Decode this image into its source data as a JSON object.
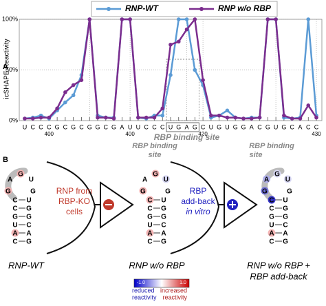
{
  "chart_data": {
    "type": "line",
    "panel_label": "A",
    "ylabel": "icSHAPE Reactivity",
    "categories": [
      "U",
      "C",
      "C",
      "C",
      "G",
      "C",
      "G",
      "C",
      "G",
      "G",
      "C",
      "G",
      "A",
      "U",
      "U",
      "C",
      "C",
      "C",
      "U",
      "G",
      "A",
      "G",
      "C",
      "U",
      "G",
      "U",
      "G",
      "G",
      "A",
      "C",
      "G",
      "U",
      "G",
      "C",
      "A",
      "C",
      "C"
    ],
    "position_labels": [
      "400",
      "400",
      "420",
      "430"
    ],
    "annotation": "RBP binding site",
    "series": [
      {
        "name": "RNP-WT",
        "color": "#5b9bd5",
        "values": [
          2,
          3,
          5,
          2,
          10,
          18,
          25,
          45,
          100,
          5,
          3,
          3,
          100,
          100,
          3,
          2,
          5,
          5,
          45,
          100,
          100,
          50,
          35,
          3,
          5,
          10,
          3,
          2,
          3,
          3,
          100,
          100,
          3,
          2,
          3,
          100,
          5
        ]
      },
      {
        "name": "RNP w/o RBP",
        "color": "#7b2d8e",
        "values": [
          2,
          2,
          3,
          3,
          12,
          28,
          35,
          40,
          100,
          3,
          3,
          2,
          100,
          100,
          3,
          3,
          3,
          12,
          75,
          78,
          90,
          100,
          40,
          5,
          5,
          3,
          3,
          2,
          2,
          3,
          100,
          100,
          5,
          2,
          2,
          15,
          3
        ]
      }
    ],
    "ylim": [
      0,
      100
    ],
    "yticks": [
      {
        "value": 0,
        "label": "0%"
      },
      {
        "value": 50,
        "label": "50%"
      },
      {
        "value": 100,
        "label": "100%"
      }
    ],
    "grid": true,
    "legend": "top"
  },
  "panel_b": {
    "panel_label": "B",
    "hairpin": {
      "left": [
        "C",
        "A",
        "U",
        "G",
        "C",
        "C"
      ],
      "loop": [
        "G",
        "A",
        "G",
        "U",
        "G"
      ],
      "right": [
        "U",
        "G",
        "G",
        "C",
        "A",
        "G"
      ]
    },
    "site_label": [
      "RBP binding",
      "site"
    ],
    "step1": [
      "RNP from",
      "RBP-KO",
      "cells"
    ],
    "step2": [
      "RBP",
      "add-back",
      "in vitro"
    ],
    "names": [
      "RNP-WT",
      "RNP w/o RBP",
      "RNP w/o RBP +",
      "RBP add-back"
    ],
    "colorbar": {
      "min": "-1.0",
      "max": "1.0",
      "low": [
        "reduced",
        "reactivity"
      ],
      "high": [
        "increased",
        "reactivity"
      ]
    }
  }
}
